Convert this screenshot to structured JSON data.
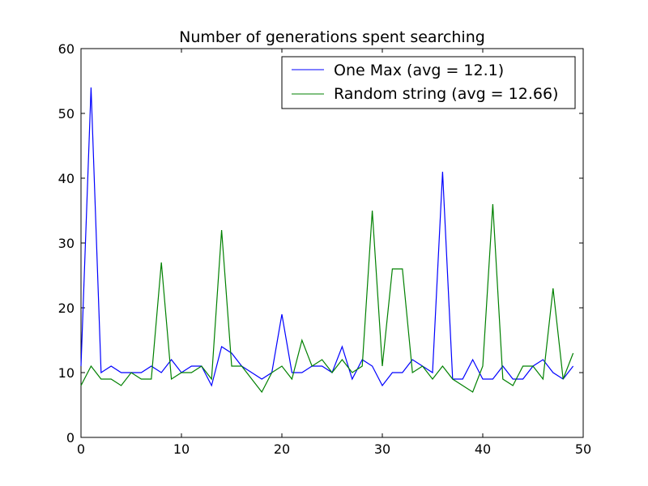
{
  "chart_data": {
    "type": "line",
    "title": "Number of generations spent searching",
    "xlabel": "",
    "ylabel": "",
    "xlim": [
      0,
      50
    ],
    "ylim": [
      0,
      60
    ],
    "xticks": [
      0,
      10,
      20,
      30,
      40,
      50
    ],
    "yticks": [
      0,
      10,
      20,
      30,
      40,
      50,
      60
    ],
    "grid": false,
    "legend_position": "top-right",
    "x": [
      0,
      1,
      2,
      3,
      4,
      5,
      6,
      7,
      8,
      9,
      10,
      11,
      12,
      13,
      14,
      15,
      16,
      17,
      18,
      19,
      20,
      21,
      22,
      23,
      24,
      25,
      26,
      27,
      28,
      29,
      30,
      31,
      32,
      33,
      34,
      35,
      36,
      37,
      38,
      39,
      40,
      41,
      42,
      43,
      44,
      45,
      46,
      47,
      48,
      49
    ],
    "series": [
      {
        "name": "One Max (avg = 12.1)",
        "color": "#0000ff",
        "values": [
          11,
          54,
          10,
          11,
          10,
          10,
          10,
          11,
          10,
          12,
          10,
          11,
          11,
          8,
          14,
          13,
          11,
          10,
          9,
          10,
          19,
          10,
          10,
          11,
          11,
          10,
          14,
          9,
          12,
          11,
          8,
          10,
          10,
          12,
          11,
          10,
          41,
          9,
          9,
          12,
          9,
          9,
          11,
          9,
          9,
          11,
          12,
          10,
          9,
          11
        ]
      },
      {
        "name": "Random string (avg = 12.66)",
        "color": "#008000",
        "values": [
          8,
          11,
          9,
          9,
          8,
          10,
          9,
          9,
          27,
          9,
          10,
          10,
          11,
          9,
          32,
          11,
          11,
          9,
          7,
          10,
          11,
          9,
          15,
          11,
          12,
          10,
          12,
          10,
          11,
          35,
          11,
          26,
          26,
          10,
          11,
          9,
          11,
          9,
          8,
          7,
          11,
          36,
          9,
          8,
          11,
          11,
          9,
          23,
          9,
          13
        ]
      }
    ]
  }
}
